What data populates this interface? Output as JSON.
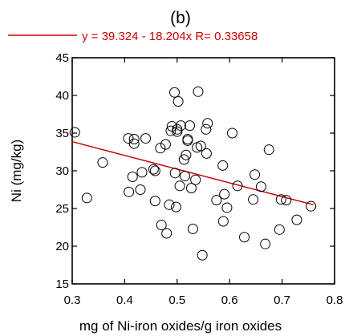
{
  "chart_data": {
    "type": "scatter",
    "title": "(b)",
    "xlabel": "mg of Ni-iron oxides/g iron oxides",
    "ylabel": "Ni (mg/kg)",
    "xlim": [
      0.3,
      0.8
    ],
    "ylim": [
      15,
      45
    ],
    "xticks": [
      0.3,
      0.4,
      0.5,
      0.6,
      0.7,
      0.8
    ],
    "yticks": [
      15,
      20,
      25,
      30,
      35,
      40,
      45
    ],
    "xtick_labels": [
      "0.3",
      "0.4",
      "0.5",
      "0.6",
      "0.7",
      "0.8"
    ],
    "ytick_labels": [
      "15",
      "20",
      "25",
      "30",
      "35",
      "40",
      "45"
    ],
    "grid": false,
    "legend_position": "top",
    "colors": {
      "fit_line": "#cc0000",
      "points": "#000000"
    },
    "fit": {
      "label": "y = 39.324 - 18.204x R= 0.33658",
      "intercept": 39.324,
      "slope": -18.204,
      "x_range": [
        0.3,
        0.76
      ]
    },
    "series": [
      {
        "x": [
          0.305,
          0.328,
          0.358,
          0.407,
          0.408,
          0.415,
          0.418,
          0.418,
          0.43,
          0.433,
          0.44,
          0.455,
          0.458,
          0.458,
          0.468,
          0.47,
          0.478,
          0.48,
          0.485,
          0.488,
          0.49,
          0.495,
          0.496,
          0.498,
          0.5,
          0.5,
          0.502,
          0.505,
          0.507,
          0.513,
          0.515,
          0.517,
          0.52,
          0.52,
          0.524,
          0.527,
          0.53,
          0.535,
          0.538,
          0.54,
          0.545,
          0.548,
          0.555,
          0.556,
          0.558,
          0.575,
          0.587,
          0.588,
          0.59,
          0.595,
          0.605,
          0.615,
          0.628,
          0.645,
          0.648,
          0.66,
          0.668,
          0.675,
          0.695,
          0.698,
          0.708,
          0.728,
          0.755
        ],
        "y": [
          35.1,
          26.4,
          31.1,
          34.3,
          27.2,
          29.2,
          34.2,
          33.6,
          27.5,
          29.8,
          34.3,
          30.2,
          30.0,
          26.0,
          33.0,
          22.8,
          33.5,
          21.7,
          25.5,
          35.3,
          35.9,
          40.4,
          29.7,
          25.2,
          35.2,
          35.5,
          39.2,
          28.0,
          36.0,
          31.5,
          29.3,
          32.1,
          34.0,
          34.2,
          36.0,
          27.7,
          22.3,
          28.8,
          33.1,
          40.5,
          33.3,
          18.8,
          35.5,
          32.3,
          36.3,
          26.1,
          30.7,
          23.3,
          26.9,
          25.1,
          35.0,
          28.0,
          21.2,
          26.2,
          29.5,
          27.9,
          20.3,
          32.8,
          22.2,
          26.2,
          26.1,
          23.5,
          25.3
        ]
      }
    ]
  }
}
